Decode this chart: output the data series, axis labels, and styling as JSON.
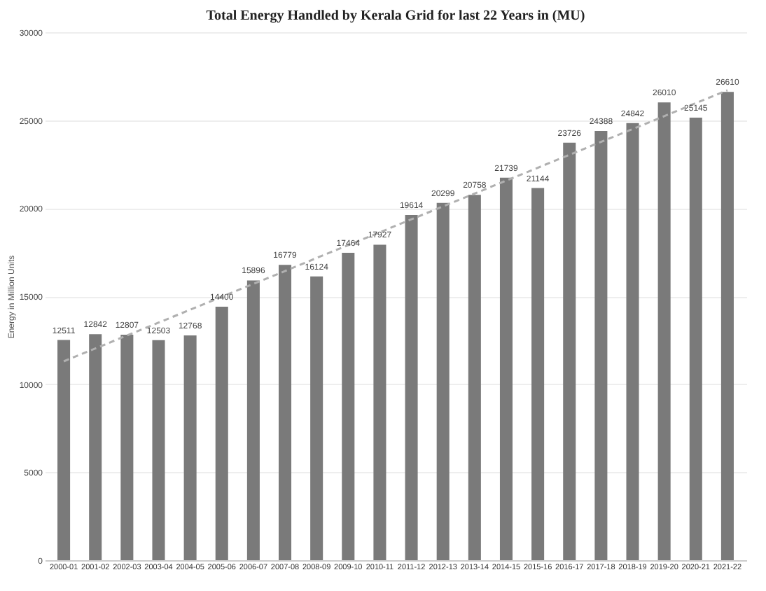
{
  "chart_data": {
    "type": "bar",
    "title": "Total Energy Handled by Kerala Grid for last 22 Years in (MU)",
    "ylabel": "Energy in Million Units",
    "categories": [
      "2000-01",
      "2001-02",
      "2002-03",
      "2003-04",
      "2004-05",
      "2005-06",
      "2006-07",
      "2007-08",
      "2008-09",
      "2009-10",
      "2010-11",
      "2011-12",
      "2012-13",
      "2013-14",
      "2014-15",
      "2015-16",
      "2016-17",
      "2017-18",
      "2018-19",
      "2019-20",
      "2020-21",
      "2021-22"
    ],
    "series": [
      {
        "color": "#7a7a7a",
        "values": [
          12511,
          12842,
          12807,
          12503,
          12768,
          14400,
          15896,
          16779,
          16124,
          17464,
          17927,
          19614,
          20299,
          20758,
          21739,
          21144,
          23726,
          24388,
          24842,
          26010,
          25145,
          26610
        ],
        "value_labels": [
          "12511",
          "12842",
          "12807",
          "12503",
          "12768",
          "14400",
          "15896",
          "16779",
          "16124",
          "17464",
          "17927",
          "19614",
          "20299",
          "20758",
          "21739",
          "21144",
          "23726",
          "24388",
          "24842",
          "26010",
          "25145",
          "26610"
        ]
      },
      {
        "type": "line",
        "color": "#b0b0b0",
        "line_style": "dashed",
        "values": [
          11300,
          12030,
          12770,
          13500,
          14230,
          14970,
          15700,
          16430,
          17170,
          17900,
          18630,
          19370,
          20100,
          20830,
          21570,
          22300,
          23030,
          23770,
          24500,
          25230,
          25970,
          26700
        ]
      }
    ],
    "ylim": [
      0,
      30000
    ],
    "yticks": [
      0,
      5000,
      10000,
      15000,
      20000,
      25000,
      30000
    ],
    "grid": "y"
  }
}
